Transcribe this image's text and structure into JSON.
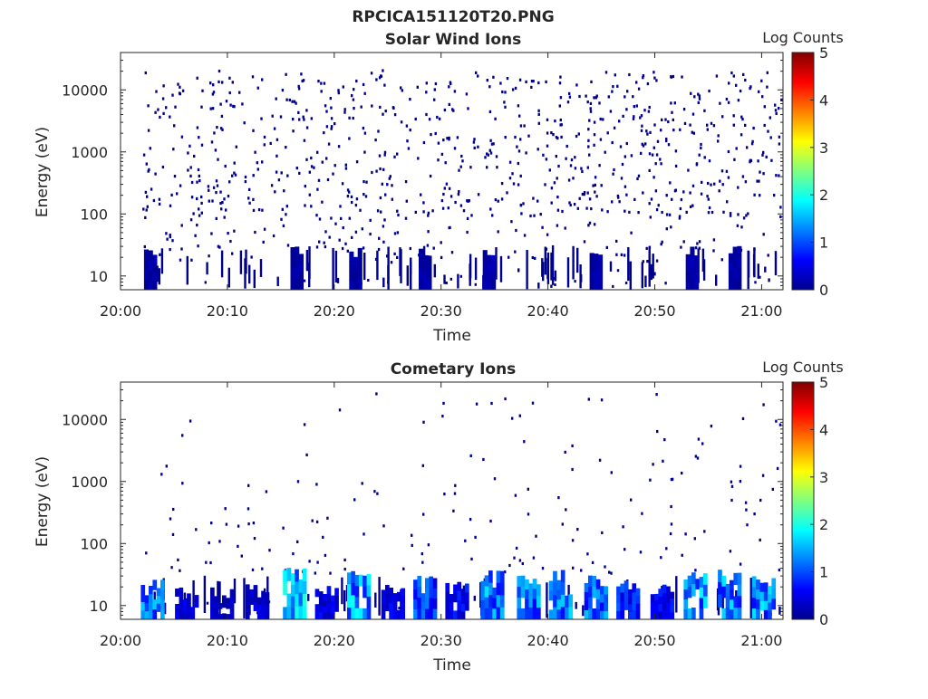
{
  "figure_title": "RPCICA151120T20.PNG",
  "chart_data": [
    {
      "type": "heatmap",
      "title": "Solar Wind Ions",
      "xlabel": "Time",
      "ylabel": "Energy (eV)",
      "y_scale": "log",
      "xlim": [
        "20:00",
        "21:02"
      ],
      "ylim": [
        6,
        40000
      ],
      "x_ticks": [
        "20:00",
        "20:10",
        "20:20",
        "20:30",
        "20:40",
        "20:50",
        "21:00"
      ],
      "y_ticks": [
        "10",
        "100",
        "1000",
        "10000"
      ],
      "colorbar": {
        "label": "Log Counts",
        "range": [
          0,
          5
        ],
        "ticks": [
          "0",
          "1",
          "2",
          "3",
          "4",
          "5"
        ],
        "colormap": "jet"
      },
      "grid": false,
      "description_level": "sparse scatter of low counts (mostly 0-0.5 log counts) across 10 eV-20 keV, denser bursts below 30 eV",
      "low_energy_bursts": [
        {
          "t": "20:02.8",
          "e_min": 6,
          "e_max": 25,
          "log_counts": 0.2
        },
        {
          "t": "20:16.5",
          "e_min": 6,
          "e_max": 28,
          "log_counts": 0.2
        },
        {
          "t": "20:22.0",
          "e_min": 6,
          "e_max": 28,
          "log_counts": 0.2
        },
        {
          "t": "20:28.5",
          "e_min": 6,
          "e_max": 25,
          "log_counts": 0.2
        },
        {
          "t": "20:34.5",
          "e_min": 6,
          "e_max": 28,
          "log_counts": 0.2
        },
        {
          "t": "20:44.5",
          "e_min": 6,
          "e_max": 28,
          "log_counts": 0.2
        },
        {
          "t": "20:53.5",
          "e_min": 6,
          "e_max": 28,
          "log_counts": 0.2
        },
        {
          "t": "20:57.5",
          "e_min": 6,
          "e_max": 28,
          "log_counts": 0.2
        }
      ]
    },
    {
      "type": "heatmap",
      "title": "Cometary Ions",
      "xlabel": "Time",
      "ylabel": "Energy (eV)",
      "y_scale": "log",
      "xlim": [
        "20:00",
        "21:02"
      ],
      "ylim": [
        6,
        40000
      ],
      "x_ticks": [
        "20:00",
        "20:10",
        "20:20",
        "20:30",
        "20:40",
        "20:50",
        "21:00"
      ],
      "y_ticks": [
        "10",
        "100",
        "1000",
        "10000"
      ],
      "colorbar": {
        "label": "Log Counts",
        "range": [
          0,
          5
        ],
        "ticks": [
          "0",
          "1",
          "2",
          "3",
          "4",
          "5"
        ],
        "colormap": "jet"
      },
      "grid": false,
      "low_energy_bursts": [
        {
          "t": "20:03.0",
          "e_min": 6,
          "e_max": 25,
          "log_counts": 1.2
        },
        {
          "t": "20:06.2",
          "e_min": 6,
          "e_max": 20,
          "log_counts": 0.5
        },
        {
          "t": "20:09.5",
          "e_min": 6,
          "e_max": 18,
          "log_counts": 0.3
        },
        {
          "t": "20:12.8",
          "e_min": 6,
          "e_max": 20,
          "log_counts": 0.4
        },
        {
          "t": "20:16.3",
          "e_min": 6,
          "e_max": 40,
          "log_counts": 1.5
        },
        {
          "t": "20:19.3",
          "e_min": 6,
          "e_max": 20,
          "log_counts": 0.5
        },
        {
          "t": "20:22.3",
          "e_min": 6,
          "e_max": 35,
          "log_counts": 1.4
        },
        {
          "t": "20:25.5",
          "e_min": 6,
          "e_max": 22,
          "log_counts": 0.5
        },
        {
          "t": "20:28.5",
          "e_min": 6,
          "e_max": 28,
          "log_counts": 1.0
        },
        {
          "t": "20:31.5",
          "e_min": 6,
          "e_max": 22,
          "log_counts": 0.6
        },
        {
          "t": "20:34.8",
          "e_min": 6,
          "e_max": 35,
          "log_counts": 1.3
        },
        {
          "t": "20:38.2",
          "e_min": 6,
          "e_max": 35,
          "log_counts": 1.2
        },
        {
          "t": "20:41.2",
          "e_min": 6,
          "e_max": 35,
          "log_counts": 1.3
        },
        {
          "t": "20:44.5",
          "e_min": 6,
          "e_max": 28,
          "log_counts": 1.2
        },
        {
          "t": "20:47.5",
          "e_min": 6,
          "e_max": 25,
          "log_counts": 0.8
        },
        {
          "t": "20:50.7",
          "e_min": 6,
          "e_max": 22,
          "log_counts": 0.6
        },
        {
          "t": "20:53.8",
          "e_min": 6,
          "e_max": 35,
          "log_counts": 1.4
        },
        {
          "t": "20:57.0",
          "e_min": 6,
          "e_max": 35,
          "log_counts": 1.3
        },
        {
          "t": "21:00.2",
          "e_min": 6,
          "e_max": 28,
          "log_counts": 1.3
        }
      ]
    }
  ]
}
